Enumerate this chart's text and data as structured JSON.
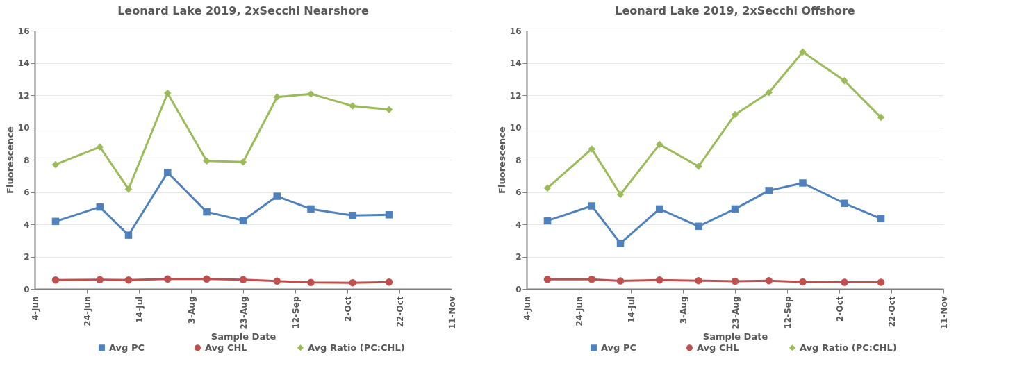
{
  "chart_data": [
    {
      "type": "line",
      "title": "Leonard Lake 2019, 2xSecchi Nearshore",
      "xlabel": "Sample Date",
      "ylabel": "Fluorescence",
      "x": [
        "2019-06-12",
        "2019-06-29",
        "2019-07-10",
        "2019-07-25",
        "2019-08-09",
        "2019-08-23",
        "2019-09-05",
        "2019-09-18",
        "2019-10-04",
        "2019-10-18"
      ],
      "series": [
        {
          "name": "Avg PC",
          "color": "#4f81bd",
          "marker": "square",
          "values": [
            4.18,
            5.07,
            3.33,
            7.21,
            4.77,
            4.24,
            5.74,
            4.95,
            4.55,
            4.59
          ]
        },
        {
          "name": "Avg CHL",
          "color": "#c0504d",
          "marker": "circle",
          "values": [
            0.55,
            0.57,
            0.55,
            0.61,
            0.61,
            0.57,
            0.48,
            0.4,
            0.38,
            0.42
          ]
        },
        {
          "name": "Avg Ratio (PC:CHL)",
          "color": "#9bbb59",
          "marker": "diamond",
          "values": [
            7.7,
            8.79,
            6.18,
            12.12,
            7.92,
            7.86,
            11.88,
            12.08,
            11.33,
            11.11
          ]
        }
      ],
      "xlim": [
        "2019-06-04",
        "2019-11-11"
      ],
      "xticks": [
        {
          "value": "2019-06-04",
          "label": "4-Jun"
        },
        {
          "value": "2019-06-24",
          "label": "24-Jun"
        },
        {
          "value": "2019-07-14",
          "label": "14-Jul"
        },
        {
          "value": "2019-08-03",
          "label": "3-Aug"
        },
        {
          "value": "2019-08-23",
          "label": "23-Aug"
        },
        {
          "value": "2019-09-12",
          "label": "12-Sep"
        },
        {
          "value": "2019-10-02",
          "label": "2-Oct"
        },
        {
          "value": "2019-10-22",
          "label": "22-Oct"
        },
        {
          "value": "2019-11-11",
          "label": "11-Nov"
        }
      ],
      "ylim": [
        0,
        16
      ],
      "yticks": [
        0,
        2,
        4,
        6,
        8,
        10,
        12,
        14,
        16
      ],
      "grid": "y",
      "legend": "bottom",
      "line_style": "solid"
    },
    {
      "type": "line",
      "title": "Leonard Lake 2019, 2xSecchi Offshore",
      "xlabel": "Sample Date",
      "ylabel": "Fluorescence",
      "x": [
        "2019-06-12",
        "2019-06-29",
        "2019-07-10",
        "2019-07-25",
        "2019-08-09",
        "2019-08-23",
        "2019-09-05",
        "2019-09-18",
        "2019-10-04",
        "2019-10-18"
      ],
      "series": [
        {
          "name": "Avg PC",
          "color": "#4f81bd",
          "marker": "square",
          "values": [
            4.22,
            5.14,
            2.82,
            4.95,
            3.88,
            4.95,
            6.09,
            6.56,
            5.3,
            4.35
          ]
        },
        {
          "name": "Avg CHL",
          "color": "#c0504d",
          "marker": "circle",
          "values": [
            0.59,
            0.59,
            0.49,
            0.55,
            0.51,
            0.47,
            0.51,
            0.43,
            0.41,
            0.41
          ]
        },
        {
          "name": "Avg Ratio (PC:CHL)",
          "color": "#9bbb59",
          "marker": "diamond",
          "values": [
            6.25,
            8.67,
            5.85,
            8.95,
            7.59,
            10.8,
            12.16,
            14.68,
            12.89,
            10.62
          ]
        }
      ],
      "xlim": [
        "2019-06-04",
        "2019-11-11"
      ],
      "xticks": [
        {
          "value": "2019-06-04",
          "label": "4-Jun"
        },
        {
          "value": "2019-06-24",
          "label": "24-Jun"
        },
        {
          "value": "2019-07-14",
          "label": "14-Jul"
        },
        {
          "value": "2019-08-03",
          "label": "3-Aug"
        },
        {
          "value": "2019-08-23",
          "label": "23-Aug"
        },
        {
          "value": "2019-09-12",
          "label": "12-Sep"
        },
        {
          "value": "2019-10-02",
          "label": "2-Oct"
        },
        {
          "value": "2019-10-22",
          "label": "22-Oct"
        },
        {
          "value": "2019-11-11",
          "label": "11-Nov"
        }
      ],
      "ylim": [
        0,
        16
      ],
      "yticks": [
        0,
        2,
        4,
        6,
        8,
        10,
        12,
        14,
        16
      ],
      "grid": "y",
      "legend": "bottom",
      "line_style": "solid"
    }
  ]
}
